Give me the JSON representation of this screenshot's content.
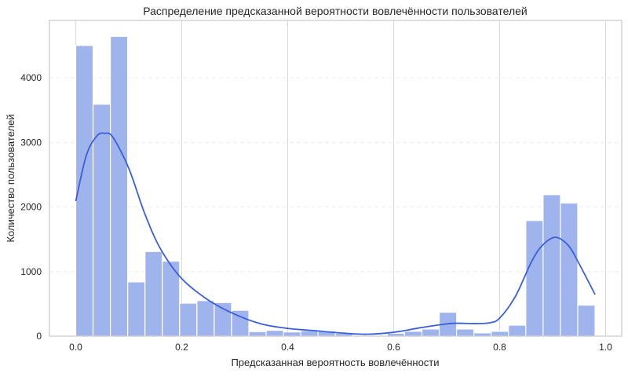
{
  "chart_data": {
    "type": "bar",
    "subtype": "histogram_with_kde",
    "title": "Распределение предсказанной вероятности вовлечённости пользователей",
    "xlabel": "Предсказанная вероятность вовлечённости",
    "ylabel": "Количество пользователей",
    "xlim": [
      -0.05,
      1.03
    ],
    "ylim": [
      0,
      4860
    ],
    "xticks": [
      0.0,
      0.2,
      0.4,
      0.6,
      0.8,
      1.0
    ],
    "xtick_labels": [
      "0.0",
      "0.2",
      "0.4",
      "0.6",
      "0.8",
      "1.0"
    ],
    "yticks": [
      0,
      1000,
      2000,
      3000,
      4000
    ],
    "ytick_labels": [
      "0",
      "1000",
      "2000",
      "3000",
      "4000"
    ],
    "grid": {
      "x": "solid",
      "y": "dashed"
    },
    "legend": null,
    "bins": {
      "start": 0.0,
      "end": 0.98,
      "count": 30
    },
    "values": [
      4500,
      3590,
      4640,
      840,
      1310,
      1160,
      510,
      550,
      520,
      400,
      70,
      90,
      65,
      85,
      80,
      45,
      0,
      0,
      45,
      75,
      110,
      370,
      110,
      50,
      75,
      170,
      1790,
      2190,
      2060,
      480
    ],
    "kde": {
      "x": [
        0.0,
        0.02,
        0.04,
        0.055,
        0.07,
        0.1,
        0.13,
        0.16,
        0.2,
        0.25,
        0.3,
        0.35,
        0.4,
        0.45,
        0.5,
        0.55,
        0.6,
        0.65,
        0.7,
        0.72,
        0.75,
        0.78,
        0.8,
        0.83,
        0.86,
        0.88,
        0.905,
        0.93,
        0.95,
        0.98
      ],
      "y": [
        2090,
        2800,
        3100,
        3140,
        3080,
        2600,
        1900,
        1350,
        890,
        560,
        340,
        190,
        120,
        85,
        50,
        30,
        60,
        130,
        190,
        200,
        195,
        205,
        280,
        620,
        1150,
        1400,
        1530,
        1400,
        1120,
        645
      ]
    },
    "colors": {
      "bars": "#9fb3ec",
      "bar_edge": "#ffffff",
      "kde": "#3b5fd9",
      "grid": "#d9d9d9",
      "spine": "#cccccc",
      "text": "#262626"
    }
  }
}
